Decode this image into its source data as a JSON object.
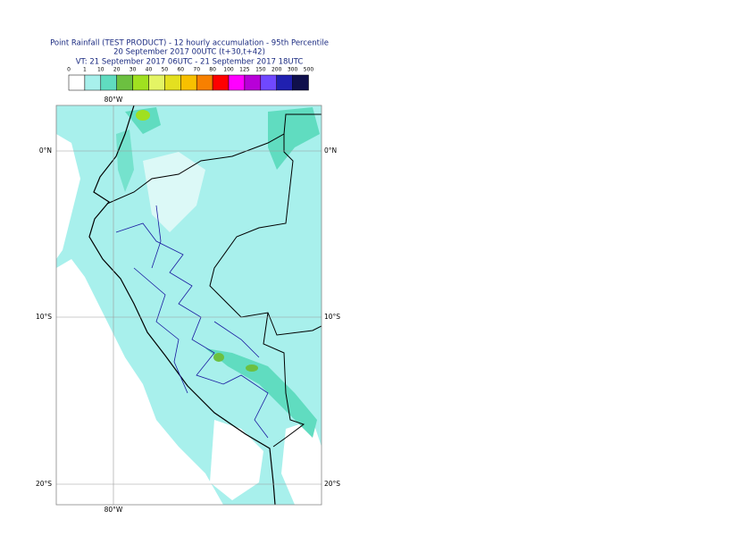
{
  "header": {
    "title_lines": [
      "Point Rainfall (TEST PRODUCT) - 12 hourly accumulation - 95th Percentile",
      "20 September 2017 00UTC (t+30,t+42)",
      "VT: 21 September 2017 06UTC - 21 September 2017 18UTC"
    ]
  },
  "legend": {
    "labels": [
      "0",
      "1",
      "10",
      "20",
      "30",
      "40",
      "50",
      "60",
      "70",
      "80",
      "100",
      "125",
      "150",
      "200",
      "300",
      "500"
    ],
    "colors": [
      "#ffffff",
      "#a8f0ec",
      "#60dcc0",
      "#6cc040",
      "#a0e020",
      "#e4f464",
      "#e4e020",
      "#f8c000",
      "#f88000",
      "#ff0000",
      "#ff00ff",
      "#b800d8",
      "#7048ff",
      "#2020b0",
      "#10104c"
    ]
  },
  "map": {
    "lon_label_top": "80°W",
    "lon_label_bottom": "80°W",
    "lat_labels_left": [
      "0°N",
      "10°S",
      "20°S"
    ],
    "lat_labels_right": [
      "0°N",
      "10°S",
      "20°S"
    ]
  }
}
